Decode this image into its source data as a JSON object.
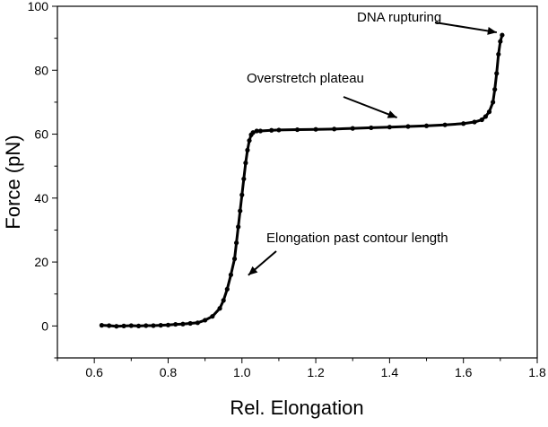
{
  "chart_data": {
    "type": "scatter",
    "title": "",
    "xlabel": "Rel. Elongation",
    "ylabel": "Force (pN)",
    "xlim": [
      0.5,
      1.8
    ],
    "ylim": [
      -10,
      100
    ],
    "xticks": [
      "0.6",
      "0.8",
      "1.0",
      "1.2",
      "1.4",
      "1.6",
      "1.8"
    ],
    "yticks": [
      "0",
      "20",
      "40",
      "60",
      "80",
      "100"
    ],
    "grid": false,
    "legend": "none",
    "marker_color": "#000000",
    "series": [
      {
        "x": [
          0.62,
          0.64,
          0.66,
          0.68,
          0.7,
          0.72,
          0.74,
          0.76,
          0.78,
          0.8,
          0.82,
          0.84,
          0.86,
          0.88,
          0.9,
          0.92,
          0.94,
          0.95,
          0.96,
          0.97,
          0.98,
          0.985,
          0.99,
          0.995,
          1.0,
          1.005,
          1.01,
          1.015,
          1.02,
          1.025,
          1.03,
          1.04,
          1.05,
          1.08,
          1.1,
          1.15,
          1.2,
          1.25,
          1.3,
          1.35,
          1.4,
          1.45,
          1.5,
          1.55,
          1.6,
          1.63,
          1.65,
          1.66,
          1.67,
          1.68,
          1.685,
          1.69,
          1.695,
          1.7,
          1.705
        ],
        "y": [
          0.2,
          0.1,
          -0.1,
          0.0,
          0.1,
          0.0,
          0.1,
          0.1,
          0.2,
          0.3,
          0.5,
          0.6,
          0.8,
          1.0,
          1.8,
          3.0,
          5.5,
          8.0,
          11.5,
          16.0,
          21.0,
          26.0,
          31.0,
          36.0,
          41.0,
          46.0,
          51.0,
          55.0,
          58.0,
          59.8,
          60.5,
          61.0,
          61.0,
          61.2,
          61.3,
          61.4,
          61.5,
          61.6,
          61.8,
          62.0,
          62.2,
          62.4,
          62.6,
          62.9,
          63.3,
          63.8,
          64.5,
          65.5,
          67.0,
          70.0,
          74.0,
          79.0,
          85.0,
          89.0,
          91.0
        ]
      }
    ],
    "annotations": [
      {
        "text": "DNA rupturing",
        "arrow_to": [
          1.7,
          91
        ]
      },
      {
        "text": "Overstretch plateau",
        "arrow_to": [
          1.42,
          63.5
        ]
      },
      {
        "text": "Elongation past contour length",
        "arrow_to": [
          1.005,
          17
        ]
      }
    ]
  }
}
